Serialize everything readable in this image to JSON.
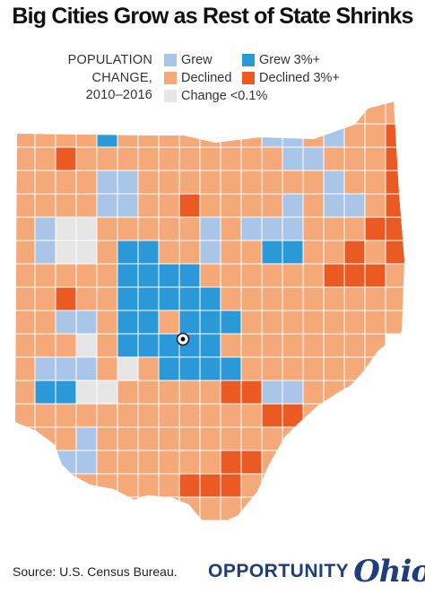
{
  "title": "Big Cities Grow as Rest of State Shrinks",
  "legend": {
    "heading_lines": [
      "POPULATION",
      "CHANGE,",
      "2010–2016"
    ],
    "items": [
      {
        "key": "grew",
        "label": "Grew",
        "color": "#a9c6e8"
      },
      {
        "key": "grew3",
        "label": "Grew 3%+",
        "color": "#2b98d8"
      },
      {
        "key": "declined",
        "label": "Declined",
        "color": "#f5a878"
      },
      {
        "key": "declined3",
        "label": "Declined 3%+",
        "color": "#ec5a24"
      },
      {
        "key": "nochange",
        "label": "Change <0.1%",
        "color": "#e6e6e6"
      }
    ]
  },
  "map": {
    "region": "Ohio",
    "marker": "capital-marker",
    "county_grid": [
      "ooooooooooooooooooo",
      "ooooBoooooooLLoLooR",
      "ooRooooooooooLLoooR",
      "ooooLLoooooooooLooR",
      "ooooLLooRooooLoLLoR",
      "oLGGoooooLoLLLoooRR",
      "oLGGoBBooLooBBooRoR",
      "oooooBBBBooooooRRRo",
      "ooRooBBBBBooooooooo",
      "ooLLoBBoBBBoooooooo",
      "oooGoBBBBBoooooooo",
      "oLLLoGoBBBBoooooooo",
      "oBBGGoooooRRLLoooo",
      "ooooooooooooRRooooo",
      "oooLooooooooooooooo",
      "ooLLooooooRRooRoooo",
      "ooooooooRRRoooRoooo",
      "oooooooooooooooooo"
    ]
  },
  "footer": {
    "source": "Source: U.S. Census Bureau.",
    "brand_word": "OPPORTUNITY",
    "brand_script": "Ohio"
  }
}
